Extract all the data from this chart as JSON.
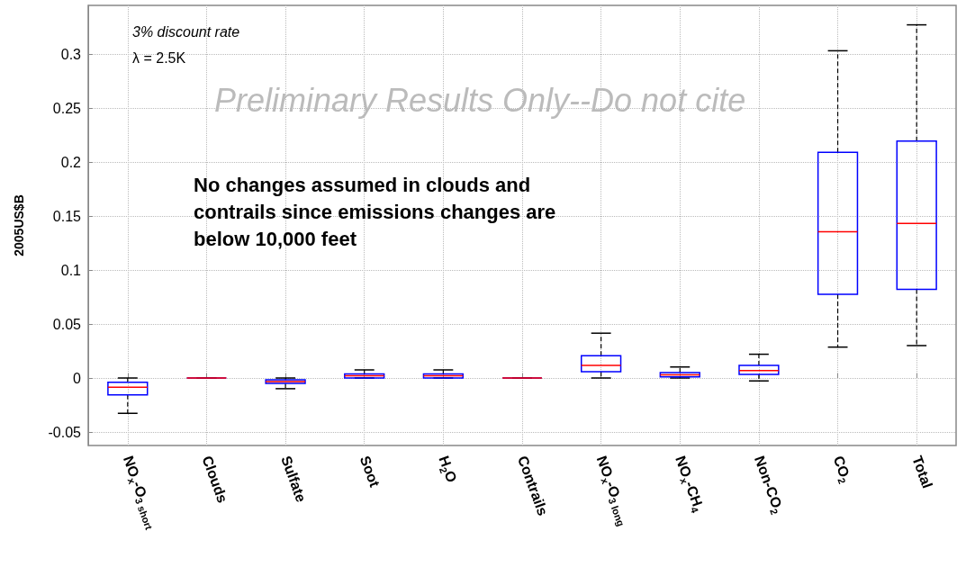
{
  "chart_data": {
    "type": "box",
    "ylabel": "2005US$B",
    "categories": [
      "NO$_{x}$-O$_{3 short}$",
      "Clouds",
      "Sulfate",
      "Soot",
      "H$_{2}$O",
      "Contrails",
      "NO$_{x}$-O$_{3 long}$",
      "NO$_{x}$-CH$_{4}$",
      "Non-CO$_{2}$",
      "CO$_{2}$",
      "Total"
    ],
    "boxes": [
      {
        "low": -0.0327,
        "q1": -0.0156,
        "median": -0.0085,
        "q3": -0.004,
        "high": 0
      },
      {
        "low": 0,
        "q1": 0,
        "median": 0,
        "q3": 0,
        "high": 0
      },
      {
        "low": -0.0099,
        "q1": -0.005,
        "median": -0.0034,
        "q3": -0.0017,
        "high": 0
      },
      {
        "low": 0,
        "q1": 0,
        "median": 0.002,
        "q3": 0.0037,
        "high": 0.0075
      },
      {
        "low": 0,
        "q1": 0,
        "median": 0.002,
        "q3": 0.0037,
        "high": 0.0075
      },
      {
        "low": 0,
        "q1": 0,
        "median": 0,
        "q3": 0,
        "high": 0
      },
      {
        "low": 0,
        "q1": 0.0058,
        "median": 0.0116,
        "q3": 0.0207,
        "high": 0.0415
      },
      {
        "low": 0,
        "q1": 0.001,
        "median": 0.003,
        "q3": 0.0051,
        "high": 0.0102
      },
      {
        "low": -0.0027,
        "q1": 0.0034,
        "median": 0.0068,
        "q3": 0.0116,
        "high": 0.022
      },
      {
        "low": 0.0286,
        "q1": 0.0776,
        "median": 0.1354,
        "q3": 0.209,
        "high": 0.303
      },
      {
        "low": 0.03,
        "q1": 0.082,
        "median": 0.1432,
        "q3": 0.2194,
        "high": 0.327
      }
    ],
    "color": "#0000ff",
    "ylim": [
      -0.0625,
      0.345
    ],
    "yticks": [
      -0.05,
      0,
      0.05,
      0.1,
      0.15,
      0.2,
      0.25,
      0.3
    ],
    "grid": true,
    "annotations": [
      "3% discount rate",
      "λ = 2.5K",
      "Preliminary Results Only--Do not cite",
      "No changes assumed in clouds and contrails since emissions changes are below 10,000 feet"
    ]
  }
}
